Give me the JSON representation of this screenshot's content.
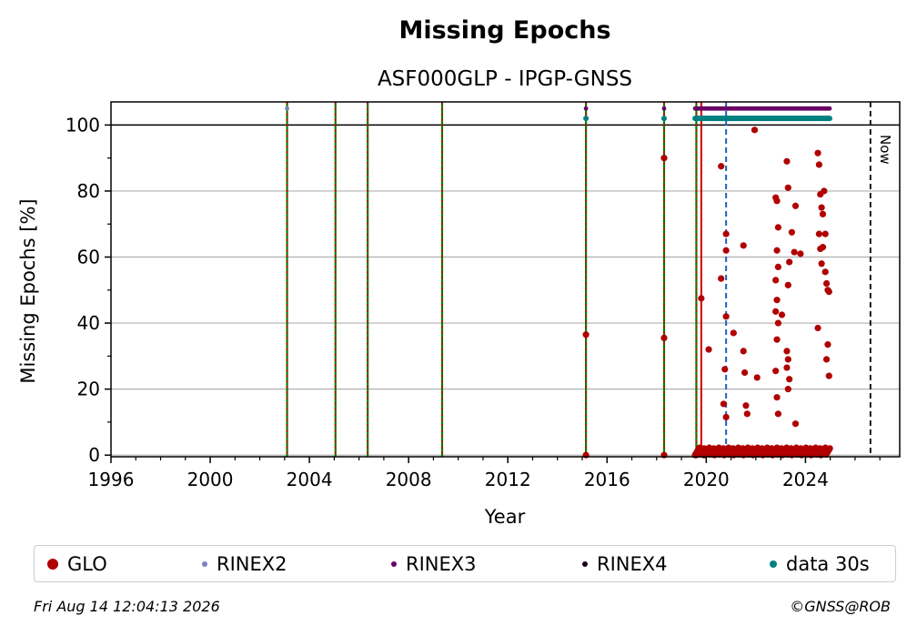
{
  "chart_data": {
    "type": "scatter",
    "title": "Missing Epochs",
    "subtitle": "ASF000GLP - IPGP-GNSS",
    "xlabel": "Year",
    "ylabel": "Missing Epochs [%]",
    "xlim": [
      1996,
      2027.8
    ],
    "ylim": [
      -0.5,
      107
    ],
    "x_ticks": [
      1996,
      2000,
      2004,
      2008,
      2012,
      2016,
      2020,
      2024
    ],
    "y_ticks": [
      0,
      20,
      40,
      60,
      80,
      100
    ],
    "reference_line": 100,
    "now_label": "Now",
    "now_x": 2026.62,
    "grid": true,
    "legend_placement": "below",
    "event_lines": {
      "green_red_dashed": [
        2003.1,
        2005.05,
        2006.35,
        2009.35,
        2015.15,
        2018.3,
        2019.6
      ],
      "red_solid": [
        2019.8
      ],
      "blue_dashed": [
        2020.8
      ]
    },
    "series": [
      {
        "name": "GLO",
        "color": "#b00000",
        "x": [
          2015.15,
          2015.15,
          2018.3,
          2018.3,
          2018.3,
          2019.6,
          2019.8,
          2019.9,
          2020.1,
          2020.6,
          2020.6,
          2020.8,
          2020.8,
          2020.8,
          2020.75,
          2020.7,
          2020.8,
          2021.1,
          2021.5,
          2021.5,
          2021.55,
          2021.6,
          2021.65,
          2021.95,
          2022.05,
          2022.8,
          2022.85,
          2022.9,
          2022.85,
          2022.9,
          2022.8,
          2022.85,
          2022.8,
          2022.9,
          2022.85,
          2022.8,
          2022.85,
          2022.9,
          2023.05,
          2023.25,
          2023.3,
          2023.35,
          2023.45,
          2023.6,
          2023.55,
          2023.8,
          2023.3,
          2023.25,
          2023.3,
          2023.25,
          2023.35,
          2023.3,
          2023.6,
          2024.5,
          2024.55,
          2024.6,
          2024.65,
          2024.7,
          2024.75,
          2024.8,
          2024.55,
          2024.6,
          2024.7,
          2024.65,
          2024.8,
          2024.85,
          2024.9,
          2024.95,
          2024.5,
          2024.9,
          2024.85,
          2024.95
        ],
        "values": [
          36.5,
          0,
          90,
          35.5,
          0,
          0,
          47.5,
          0,
          32,
          87.5,
          53.5,
          67,
          62,
          42,
          26,
          15.5,
          11.5,
          37,
          63.5,
          31.5,
          25,
          15,
          12.5,
          98.5,
          23.5,
          78,
          77,
          69,
          62,
          57,
          53,
          47,
          43.5,
          40,
          35,
          25.5,
          17.5,
          12.5,
          42.5,
          89,
          81,
          58.5,
          67.5,
          75.5,
          61.5,
          61,
          51.5,
          31.5,
          29,
          26.5,
          23,
          20,
          9.5,
          91.5,
          88,
          79,
          75,
          73,
          80,
          67,
          67,
          62.5,
          63,
          58,
          55.5,
          52,
          50,
          49.5,
          38.5,
          33.5,
          29,
          24
        ],
        "baseline_dense_range": [
          2019.55,
          2025.0
        ],
        "baseline_value": 0
      },
      {
        "name": "RINEX2",
        "color": "#8080c0",
        "x": [
          2003.1
        ],
        "values": [
          105
        ]
      },
      {
        "name": "RINEX3",
        "color": "#6a0066",
        "x": [
          2015.15,
          2018.3
        ],
        "values": [
          105,
          105
        ],
        "dense_range": [
          2019.55,
          2025.0
        ],
        "dense_value": 105
      },
      {
        "name": "RINEX4",
        "color": "#1a0018",
        "x": [],
        "values": []
      },
      {
        "name": "data 30s",
        "color": "#008080",
        "x": [
          2015.15,
          2018.3
        ],
        "values": [
          102,
          102
        ],
        "dense_range": [
          2019.55,
          2025.0
        ],
        "dense_value": 102
      }
    ]
  },
  "legend": [
    {
      "label": "GLO",
      "color": "#b00000",
      "size": 12
    },
    {
      "label": "RINEX2",
      "color": "#8080c0",
      "size": 6
    },
    {
      "label": "RINEX3",
      "color": "#6a0066",
      "size": 6
    },
    {
      "label": "RINEX4",
      "color": "#1a0018",
      "size": 6
    },
    {
      "label": "data 30s",
      "color": "#008080",
      "size": 8
    }
  ],
  "footer": {
    "timestamp": "Fri Aug 14 12:04:13 2026",
    "copyright": "©GNSS@ROB"
  }
}
